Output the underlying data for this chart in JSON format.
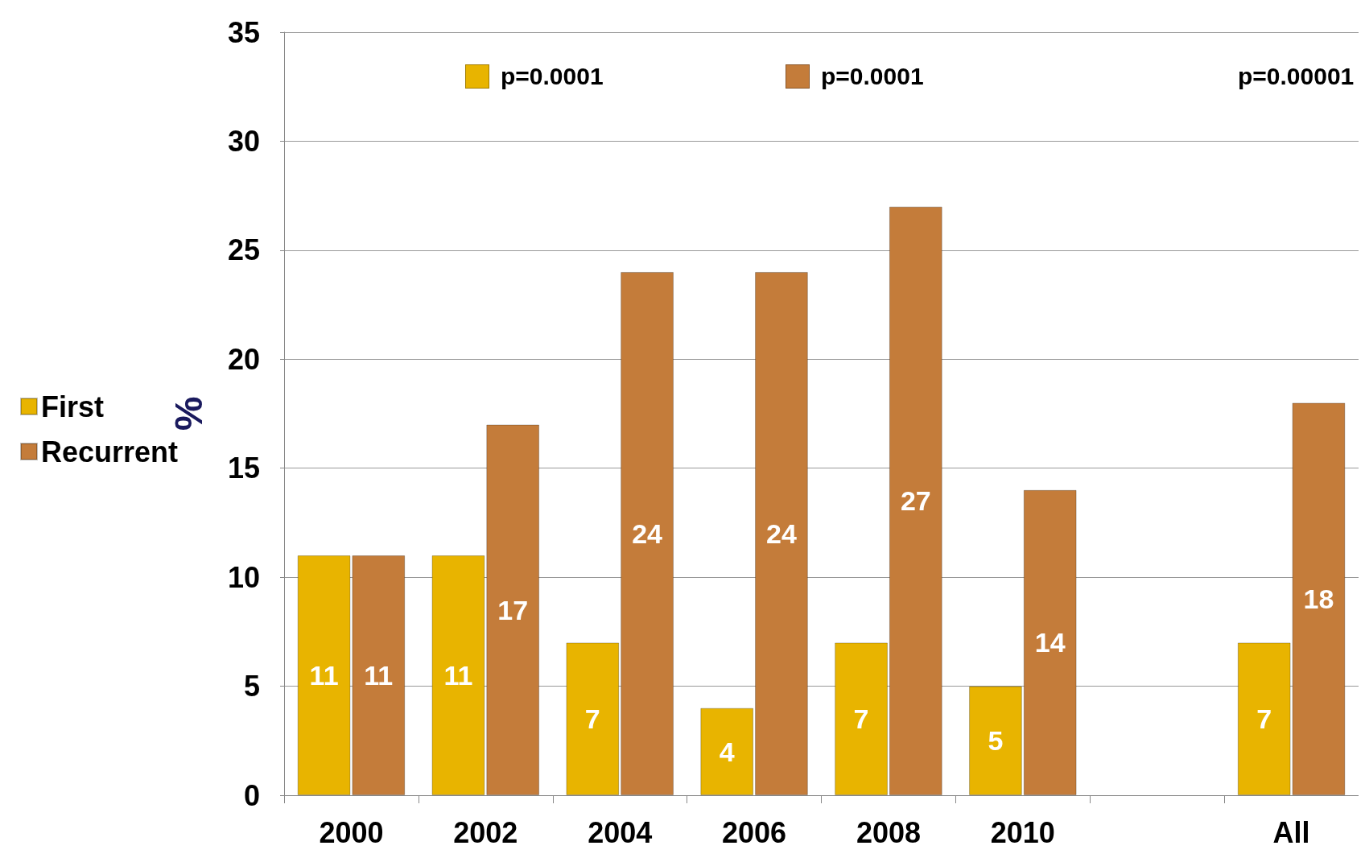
{
  "chart_data": {
    "type": "bar",
    "ylabel": "%",
    "categories": [
      "2000",
      "2002",
      "2004",
      "2006",
      "2008",
      "2010",
      null,
      "All"
    ],
    "series": [
      {
        "name": "First",
        "color": "#e8b400",
        "values": [
          11,
          11,
          7,
          4,
          7,
          5,
          null,
          7
        ]
      },
      {
        "name": "Recurrent",
        "color": "#c47c3a",
        "values": [
          11,
          17,
          24,
          24,
          27,
          14,
          null,
          18
        ]
      }
    ],
    "ylim": [
      0,
      35
    ],
    "yticks": [
      0,
      5,
      10,
      15,
      20,
      25,
      30,
      35
    ],
    "grid": "y",
    "legend": "left",
    "data_labels": true,
    "annotations": [
      "p=0.0001",
      "p=0.0001",
      "p=0.00001"
    ]
  }
}
